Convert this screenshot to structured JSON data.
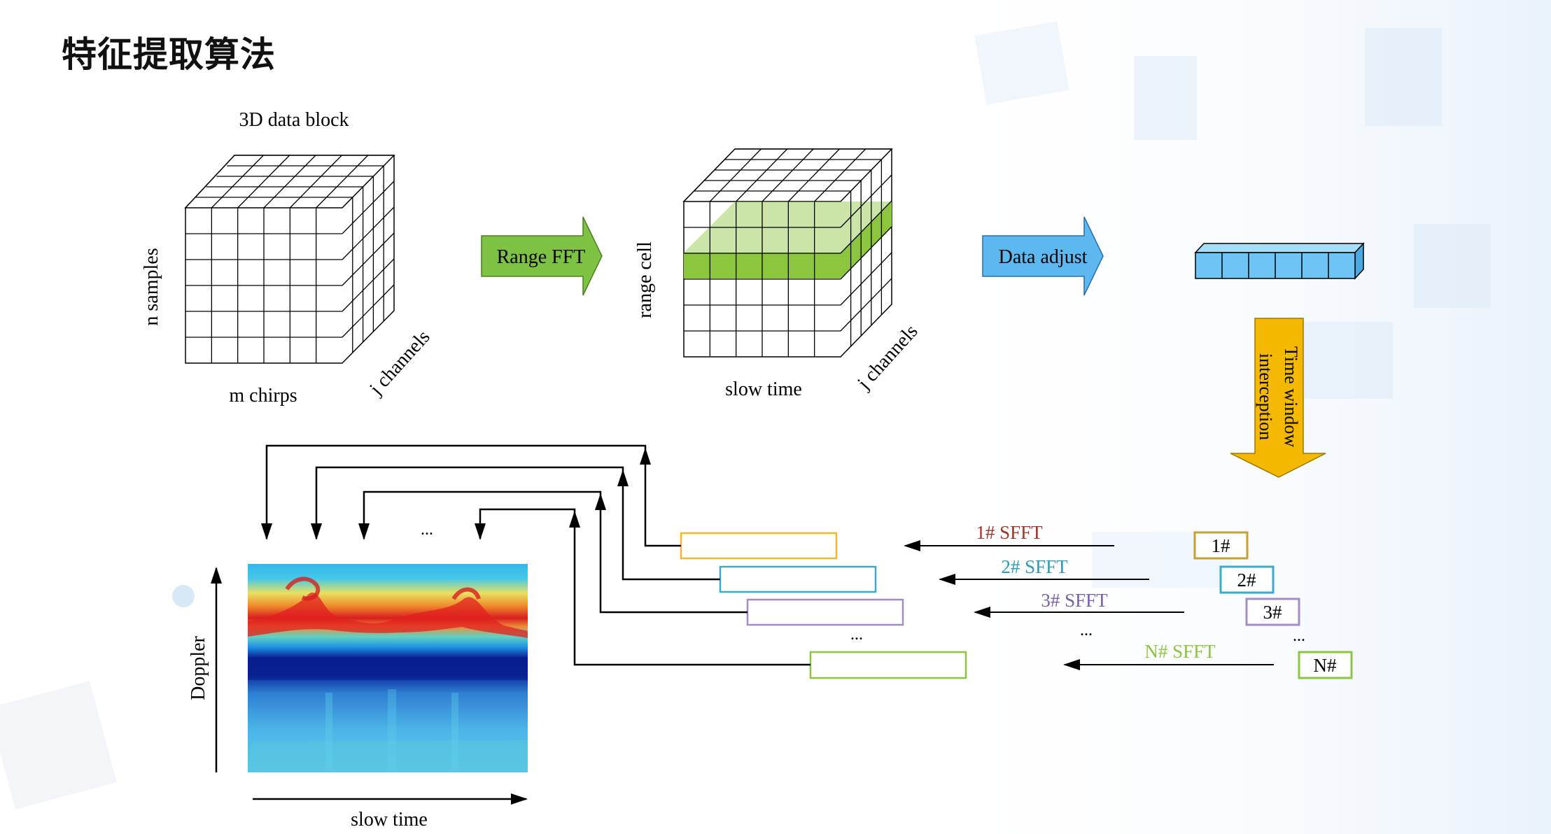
{
  "page_title": "特征提取算法",
  "labels": {
    "block_3d": "3D data block",
    "n_samples": "n samples",
    "m_chirps": "m chirps",
    "j_channels_1": "j channels",
    "range_fft": "Range FFT",
    "range_cell": "range cell",
    "slow_time_1": "slow time",
    "j_channels_2": "j channels",
    "data_adjust": "Data adjust",
    "time_window_1": "Time window",
    "time_window_2": "interception",
    "doppler": "Doppler",
    "slow_time_2": "slow time",
    "ellipsis_top": "...",
    "ellipsis_frames": "...",
    "ellipsis_sfft": "...",
    "ellipsis_boxes": "..."
  },
  "sfft_rows": [
    {
      "sfft": "1# SFFT",
      "box": "1#",
      "sfft_color": "#a0332a",
      "box_color": "#c8a030",
      "frame_color": "#f0b82a"
    },
    {
      "sfft": "2# SFFT",
      "box": "2#",
      "sfft_color": "#2a9bb8",
      "box_color": "#3aaacd",
      "frame_color": "#3aaacd"
    },
    {
      "sfft": "3# SFFT",
      "box": "3#",
      "sfft_color": "#7a5fa8",
      "box_color": "#a48cca",
      "frame_color": "#a48cca"
    },
    {
      "sfft": "N# SFFT",
      "box": "N#",
      "sfft_color": "#8cc63f",
      "box_color": "#8cc63f",
      "frame_color": "#8cc63f"
    }
  ],
  "colors": {
    "green_arrow": "#7dc243",
    "blue_arrow": "#5db8f0",
    "orange_arrow": "#f5b800",
    "highlight_green": "#8cc63f",
    "vector_blue": "#6ec4f5"
  }
}
